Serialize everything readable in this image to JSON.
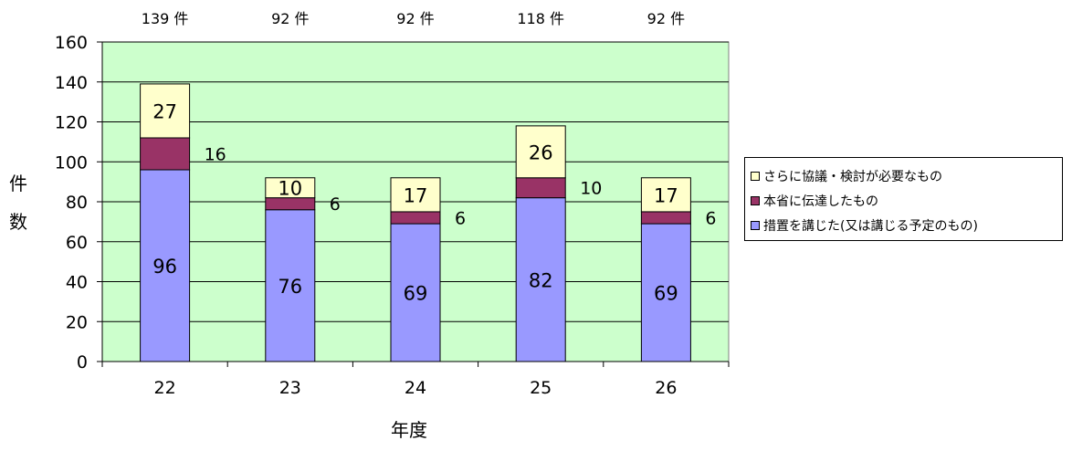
{
  "chart_data": {
    "type": "bar",
    "stacked": true,
    "title": "",
    "xlabel": "年度",
    "ylabel": "件数",
    "ylim": [
      0,
      160
    ],
    "yticks": [
      "0",
      "20",
      "40",
      "60",
      "80",
      "100",
      "120",
      "140",
      "160"
    ],
    "categories": [
      "22",
      "23",
      "24",
      "25",
      "26"
    ],
    "totals": [
      "139 件",
      "92 件",
      "92 件",
      "118 件",
      "92 件"
    ],
    "series": [
      {
        "name": "措置を講じた(又は講じる予定のもの)",
        "color": "#9999ff",
        "values": [
          96,
          76,
          69,
          82,
          69
        ]
      },
      {
        "name": "本省に伝達したもの",
        "color": "#993366",
        "values": [
          16,
          6,
          6,
          10,
          6
        ]
      },
      {
        "name": "さらに協議・検討が必要なもの",
        "color": "#ffffcc",
        "values": [
          27,
          10,
          17,
          26,
          17
        ]
      }
    ],
    "plot_background": "#ccffcc",
    "grid": true,
    "legend_position": "right"
  },
  "legend": {
    "items": [
      {
        "label": "さらに協議・検討が必要なもの",
        "color": "#ffffcc"
      },
      {
        "label": "本省に伝達したもの",
        "color": "#993366"
      },
      {
        "label": "措置を講じた(又は講じる予定のもの)",
        "color": "#9999ff"
      }
    ]
  }
}
